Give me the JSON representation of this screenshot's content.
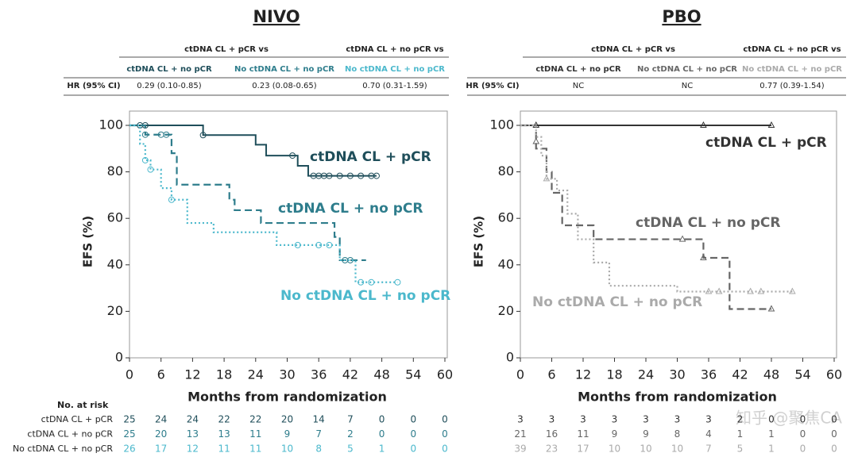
{
  "chart_data": [
    {
      "type": "line",
      "title": "NIVO",
      "xlabel": "Months from randomization",
      "ylabel": "EFS (%)",
      "xlim": [
        0,
        60
      ],
      "ylim": [
        0,
        100
      ],
      "xticks": [
        0,
        6,
        12,
        18,
        24,
        30,
        36,
        42,
        48,
        54,
        60
      ],
      "yticks": [
        0,
        20,
        40,
        60,
        80,
        100
      ],
      "marker": "circle",
      "hr_table": {
        "groups": [
          "ctDNA CL + pCR vs",
          "ctDNA CL + no pCR vs"
        ],
        "columns": [
          "ctDNA CL + no pCR",
          "No ctDNA CL + no pCR",
          "No ctDNA CL + no pCR"
        ],
        "row_label": "HR (95% CI)",
        "values": [
          "0.29 (0.10-0.85)",
          "0.23 (0.08-0.65)",
          "0.70 (0.31-1.59)"
        ]
      },
      "series": [
        {
          "name": "ctDNA CL + pCR",
          "color": "#1f4e5a",
          "style": "solid",
          "x": [
            0,
            14,
            24,
            26,
            32,
            34,
            47
          ],
          "values": [
            100,
            95.8,
            91.7,
            87,
            82.6,
            78.3,
            78.3
          ],
          "censored": {
            "x": [
              2,
              3,
              14,
              31,
              35,
              36,
              37,
              38,
              40,
              42,
              44,
              46,
              47
            ],
            "y": [
              100,
              100,
              95.8,
              87,
              78.3,
              78.3,
              78.3,
              78.3,
              78.3,
              78.3,
              78.3,
              78.3,
              78.3
            ]
          }
        },
        {
          "name": "ctDNA CL + no pCR",
          "color": "#2e7d8c",
          "style": "dashed",
          "x": [
            0,
            3,
            8,
            9,
            19,
            20,
            25,
            39,
            40,
            45
          ],
          "values": [
            100,
            96,
            88,
            74.5,
            68,
            63.5,
            58,
            52,
            42,
            42
          ],
          "censored": {
            "x": [
              3,
              6,
              7,
              41,
              42
            ],
            "y": [
              96,
              96,
              96,
              42,
              42
            ]
          }
        },
        {
          "name": "No ctDNA CL + no pCR",
          "color": "#4bb8cc",
          "style": "dotted",
          "x": [
            0,
            2,
            3,
            4,
            6,
            8,
            11,
            16,
            28,
            40,
            43,
            51
          ],
          "values": [
            100,
            92,
            85,
            81,
            73,
            68,
            58,
            54,
            48.5,
            42,
            32.5,
            32.5
          ],
          "censored": {
            "x": [
              3,
              4,
              8,
              32,
              36,
              38,
              44,
              46,
              51
            ],
            "y": [
              85,
              81,
              68,
              48.5,
              48.5,
              48.5,
              32.5,
              32.5,
              32.5
            ]
          }
        }
      ],
      "at_risk": {
        "title": "No. at risk",
        "rows": [
          {
            "name": "ctDNA CL + pCR",
            "values": [
              25,
              24,
              24,
              22,
              22,
              20,
              14,
              7,
              0,
              0,
              0
            ]
          },
          {
            "name": "ctDNA CL + no pCR",
            "values": [
              25,
              20,
              13,
              13,
              11,
              9,
              7,
              2,
              0,
              0,
              0
            ]
          },
          {
            "name": "No ctDNA CL + no pCR",
            "values": [
              26,
              17,
              12,
              11,
              11,
              10,
              8,
              5,
              1,
              0,
              0
            ]
          }
        ]
      }
    },
    {
      "type": "line",
      "title": "PBO",
      "xlabel": "Months from randomization",
      "ylabel": "EFS (%)",
      "xlim": [
        0,
        60
      ],
      "ylim": [
        0,
        100
      ],
      "xticks": [
        0,
        6,
        12,
        18,
        24,
        30,
        36,
        42,
        48,
        54,
        60
      ],
      "yticks": [
        0,
        20,
        40,
        60,
        80,
        100
      ],
      "marker": "triangle",
      "hr_table": {
        "groups": [
          "ctDNA CL + pCR vs",
          "ctDNA CL + no pCR vs"
        ],
        "columns": [
          "ctDNA CL + no pCR",
          "No ctDNA CL + no pCR",
          "No ctDNA CL + no pCR"
        ],
        "row_label": "HR (95% CI)",
        "values": [
          "NC",
          "NC",
          "0.77 (0.39-1.54)"
        ]
      },
      "series": [
        {
          "name": "ctDNA CL + pCR",
          "color": "#333333",
          "style": "solid",
          "x": [
            0,
            48
          ],
          "values": [
            100,
            100
          ],
          "censored": {
            "x": [
              3,
              35,
              48
            ],
            "y": [
              100,
              100,
              100
            ]
          }
        },
        {
          "name": "ctDNA CL + no pCR",
          "color": "#666666",
          "style": "dashed",
          "x": [
            0,
            3,
            5,
            6,
            8,
            14,
            35,
            40,
            48
          ],
          "values": [
            100,
            90,
            80,
            71,
            57,
            51,
            43,
            21,
            21
          ],
          "censored": {
            "x": [
              3,
              31,
              35,
              48
            ],
            "y": [
              93,
              51,
              43,
              21
            ]
          }
        },
        {
          "name": "No ctDNA CL + no pCR",
          "color": "#aaaaaa",
          "style": "dotted",
          "x": [
            0,
            3,
            4,
            5,
            7,
            9,
            11,
            14,
            17,
            30,
            52
          ],
          "values": [
            100,
            95,
            87,
            77,
            72,
            62,
            51,
            41,
            31,
            28.5,
            28.5
          ],
          "censored": {
            "x": [
              5,
              36,
              38,
              44,
              46,
              52
            ],
            "y": [
              77,
              28.5,
              28.5,
              28.5,
              28.5,
              28.5
            ]
          }
        }
      ],
      "at_risk": {
        "rows": [
          {
            "values": [
              3,
              3,
              3,
              3,
              3,
              3,
              3,
              2,
              0,
              0,
              0
            ]
          },
          {
            "values": [
              21,
              16,
              11,
              9,
              9,
              8,
              4,
              1,
              1,
              0,
              0
            ]
          },
          {
            "values": [
              39,
              23,
              17,
              10,
              10,
              10,
              7,
              5,
              1,
              0,
              0
            ]
          }
        ]
      }
    }
  ],
  "watermark": "知乎 @聚焦CA"
}
